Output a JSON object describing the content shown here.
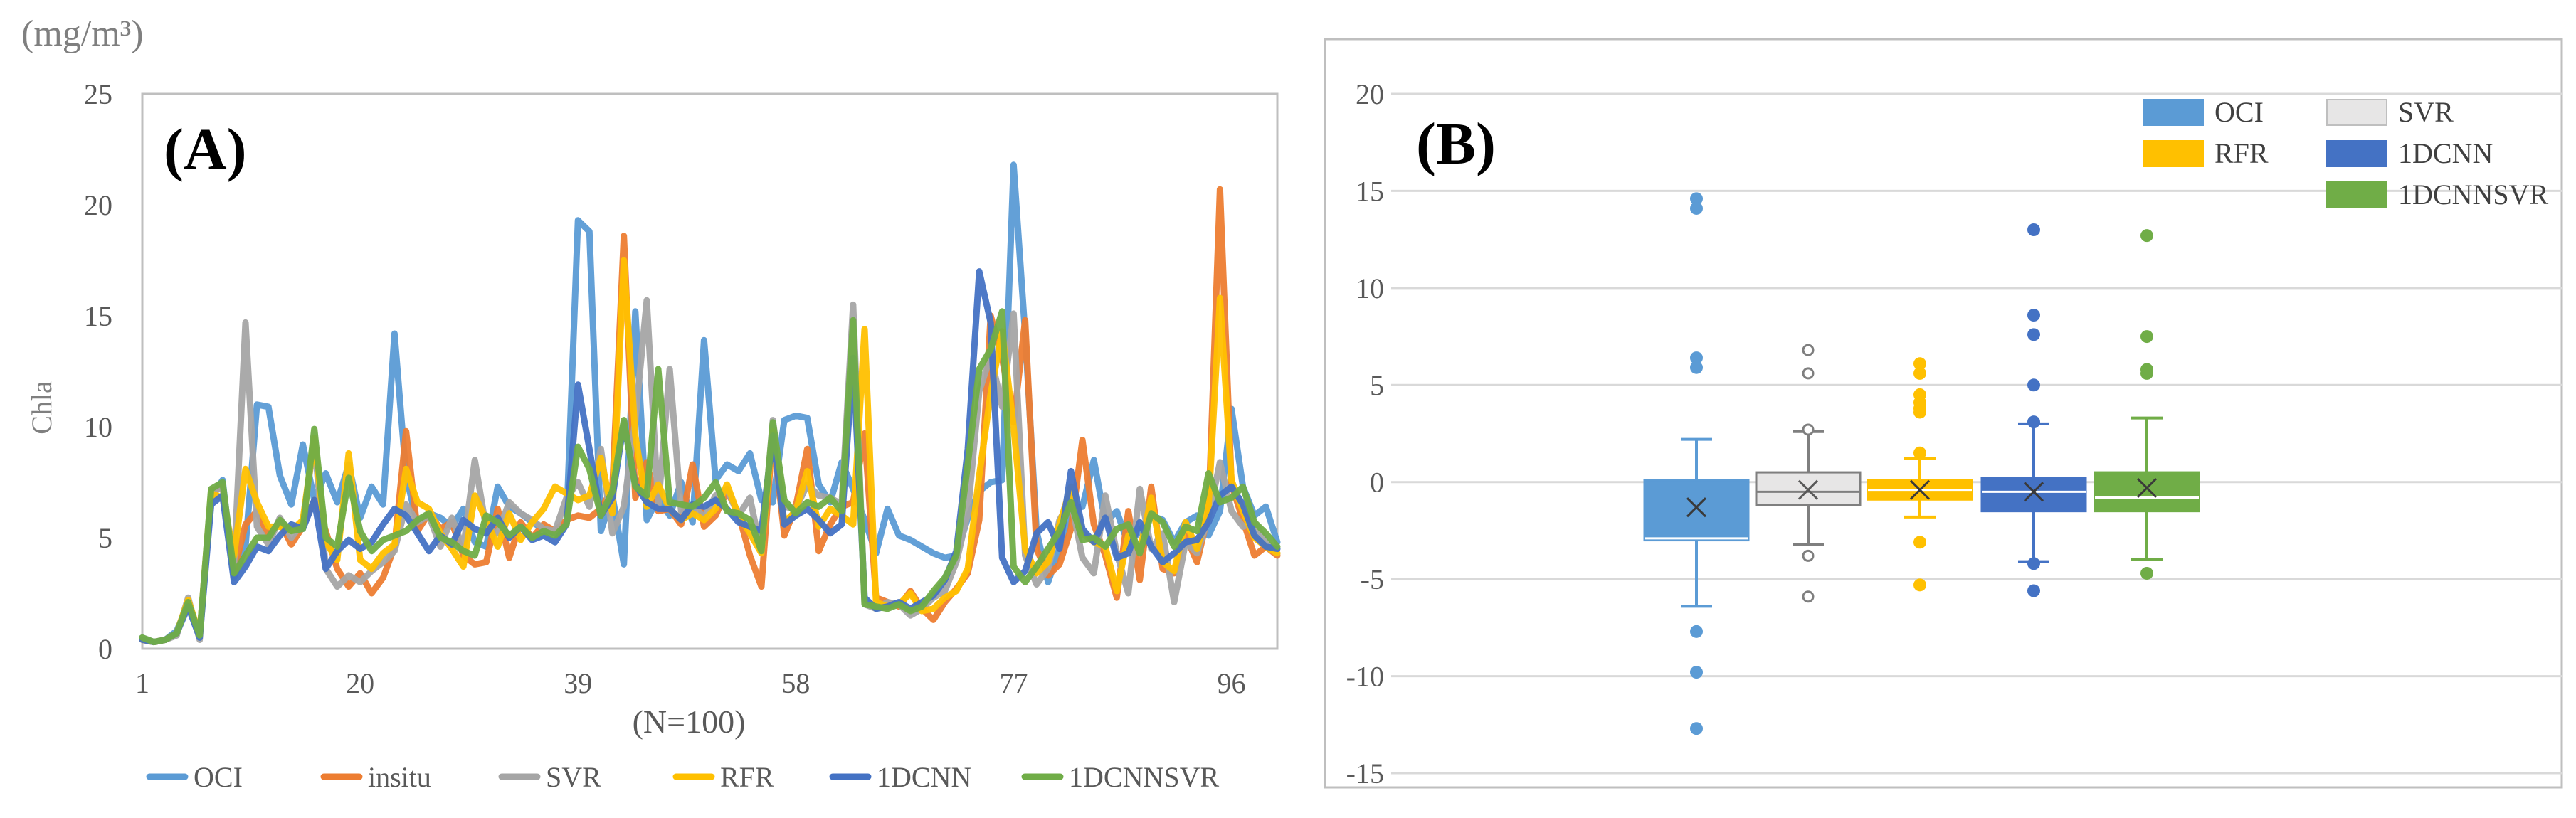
{
  "chart_data": [
    {
      "type": "line",
      "panel_label": "(A)",
      "unit_label": "(mg/m³)",
      "ylabel": "Chla",
      "xlabel": "(N=100)",
      "ylim": [
        0,
        25
      ],
      "y_ticks": [
        "0",
        "5",
        "10",
        "15",
        "20",
        "25"
      ],
      "x_ticks": [
        "1",
        "20",
        "39",
        "58",
        "77",
        "96"
      ],
      "xlim": [
        1,
        100
      ],
      "grid": false,
      "legend_position": "bottom",
      "x": [
        1,
        2,
        3,
        4,
        5,
        6,
        7,
        8,
        9,
        10,
        11,
        12,
        13,
        14,
        15,
        16,
        17,
        18,
        19,
        20,
        21,
        22,
        23,
        24,
        25,
        26,
        27,
        28,
        29,
        30,
        31,
        32,
        33,
        34,
        35,
        36,
        37,
        38,
        39,
        40,
        41,
        42,
        43,
        44,
        45,
        46,
        47,
        48,
        49,
        50,
        51,
        52,
        53,
        54,
        55,
        56,
        57,
        58,
        59,
        60,
        61,
        62,
        63,
        64,
        65,
        66,
        67,
        68,
        69,
        70,
        71,
        72,
        73,
        74,
        75,
        76,
        77,
        78,
        79,
        80,
        81,
        82,
        83,
        84,
        85,
        86,
        87,
        88,
        89,
        90,
        91,
        92,
        93,
        94,
        95,
        96,
        97,
        98,
        99,
        100
      ],
      "series": [
        {
          "name": "OCI",
          "color": "#5B9BD5",
          "values": [
            0.5,
            0.3,
            0.4,
            0.8,
            2.0,
            0.6,
            6.8,
            7.6,
            3.2,
            4.6,
            11.0,
            10.9,
            7.8,
            6.5,
            9.2,
            6.7,
            7.9,
            6.6,
            8.3,
            5.9,
            7.3,
            6.5,
            14.2,
            7.8,
            5.6,
            6.1,
            5.9,
            5.5,
            6.3,
            4.8,
            4.6,
            7.3,
            6.4,
            6.1,
            5.7,
            5.4,
            5.2,
            5.7,
            19.3,
            18.8,
            5.3,
            6.9,
            3.8,
            15.2,
            5.8,
            6.8,
            6.0,
            7.5,
            5.7,
            13.9,
            7.6,
            8.3,
            8.0,
            8.8,
            6.7,
            6.6,
            10.3,
            10.5,
            10.4,
            7.4,
            6.6,
            8.4,
            7.2,
            5.8,
            4.3,
            6.3,
            5.1,
            4.9,
            4.6,
            4.3,
            4.1,
            4.2,
            5.9,
            7.1,
            7.5,
            7.6,
            21.8,
            14.2,
            5.3,
            3.0,
            4.5,
            6.3,
            6.4,
            8.5,
            5.7,
            6.2,
            4.7,
            5.3,
            6.0,
            5.8,
            4.8,
            5.7,
            6.0,
            5.1,
            6.2,
            10.8,
            7.3,
            6.0,
            6.4,
            4.8
          ]
        },
        {
          "name": "insitu",
          "color": "#ED7D31",
          "values": [
            0.4,
            0.3,
            0.4,
            0.7,
            2.1,
            0.6,
            7.1,
            7.3,
            3.5,
            5.6,
            6.2,
            5.1,
            5.7,
            4.7,
            5.5,
            6.7,
            5.3,
            3.6,
            2.8,
            3.4,
            2.5,
            3.2,
            4.6,
            9.8,
            5.3,
            6.1,
            5.4,
            5.7,
            4.2,
            3.8,
            3.9,
            6.3,
            4.1,
            5.7,
            5.0,
            5.6,
            5.3,
            5.8,
            6.0,
            5.9,
            6.3,
            7.2,
            18.6,
            6.8,
            8.4,
            6.2,
            6.3,
            5.6,
            8.3,
            5.5,
            6.0,
            7.1,
            6.1,
            4.2,
            2.8,
            9.8,
            5.1,
            6.4,
            9.0,
            4.4,
            5.6,
            6.4,
            6.6,
            9.7,
            2.3,
            2.1,
            1.9,
            2.6,
            1.8,
            1.3,
            2.1,
            2.7,
            3.4,
            5.8,
            15.0,
            13.1,
            10.2,
            14.8,
            4.5,
            3.3,
            3.8,
            5.4,
            9.4,
            5.6,
            4.2,
            2.3,
            6.2,
            3.1,
            7.3,
            3.6,
            3.4,
            5.1,
            3.9,
            6.1,
            20.7,
            7.4,
            5.8,
            4.2,
            4.6,
            4.2
          ]
        },
        {
          "name": "SVR",
          "color": "#A5A5A5",
          "values": [
            0.5,
            0.3,
            0.4,
            0.6,
            2.3,
            0.4,
            7.0,
            7.3,
            3.8,
            14.7,
            5.5,
            4.7,
            5.9,
            5.0,
            5.7,
            9.4,
            3.6,
            2.8,
            3.3,
            3.0,
            3.5,
            3.9,
            4.4,
            6.5,
            5.7,
            6.0,
            4.6,
            5.9,
            4.5,
            8.5,
            5.4,
            5.2,
            6.6,
            6.1,
            5.8,
            5.4,
            5.3,
            6.8,
            7.5,
            6.4,
            9.0,
            5.2,
            6.4,
            10.3,
            15.7,
            6.4,
            12.6,
            6.2,
            6.5,
            5.9,
            6.9,
            7.2,
            6.0,
            6.8,
            4.3,
            10.3,
            6.4,
            6.3,
            7.4,
            6.9,
            6.8,
            6.5,
            15.5,
            2.0,
            1.8,
            2.1,
            2.0,
            1.5,
            1.8,
            2.3,
            2.6,
            3.9,
            6.1,
            11.6,
            13.2,
            10.9,
            15.1,
            4.2,
            2.9,
            3.6,
            5.8,
            6.7,
            4.1,
            3.4,
            6.9,
            4.3,
            2.5,
            7.2,
            4.5,
            5.2,
            2.1,
            4.8,
            4.3,
            5.9,
            8.4,
            6.2,
            5.5,
            5.7,
            4.8,
            4.3
          ]
        },
        {
          "name": "RFR",
          "color": "#FFC000",
          "values": [
            0.4,
            0.3,
            0.4,
            0.7,
            2.2,
            0.6,
            7.0,
            6.8,
            4.2,
            8.1,
            6.6,
            5.5,
            5.5,
            5.3,
            5.8,
            9.5,
            4.8,
            4.0,
            8.8,
            4.0,
            3.6,
            4.3,
            4.7,
            8.1,
            6.6,
            6.3,
            5.2,
            4.5,
            3.7,
            6.9,
            5.8,
            4.6,
            6.1,
            4.9,
            5.7,
            6.3,
            7.3,
            7.0,
            6.7,
            6.9,
            8.6,
            6.1,
            17.5,
            9.6,
            6.4,
            7.4,
            6.3,
            5.8,
            6.1,
            5.8,
            6.3,
            7.4,
            6.0,
            5.2,
            4.3,
            9.8,
            5.7,
            6.2,
            8.0,
            5.5,
            6.3,
            6.0,
            5.6,
            14.4,
            2.1,
            1.9,
            2.0,
            2.5,
            1.7,
            1.8,
            2.3,
            2.6,
            3.6,
            7.8,
            11.5,
            14.3,
            10.0,
            4.5,
            3.4,
            3.9,
            5.6,
            7.3,
            5.2,
            4.8,
            4.6,
            2.6,
            5.1,
            4.4,
            6.8,
            3.9,
            3.5,
            5.7,
            4.5,
            6.4,
            15.8,
            7.6,
            6.2,
            5.0,
            4.6,
            4.3
          ]
        },
        {
          "name": "1DCNN",
          "color": "#4472C4",
          "values": [
            0.4,
            0.3,
            0.4,
            0.7,
            1.9,
            0.5,
            6.5,
            6.9,
            3.0,
            3.7,
            4.6,
            4.4,
            5.1,
            5.6,
            5.4,
            6.7,
            3.6,
            4.4,
            4.9,
            4.5,
            4.8,
            5.6,
            6.3,
            6.0,
            5.2,
            4.4,
            5.1,
            4.7,
            5.8,
            5.4,
            5.2,
            5.9,
            5.0,
            5.5,
            4.9,
            5.1,
            4.8,
            5.6,
            11.9,
            9.0,
            6.0,
            6.8,
            10.2,
            7.4,
            6.6,
            6.3,
            6.3,
            5.8,
            6.5,
            6.4,
            6.7,
            6.3,
            5.7,
            5.5,
            5.3,
            9.6,
            5.6,
            6.0,
            6.3,
            5.8,
            5.2,
            5.6,
            13.1,
            2.3,
            1.8,
            1.9,
            2.1,
            1.8,
            2.1,
            2.4,
            3.1,
            4.4,
            9.0,
            17.0,
            14.7,
            4.1,
            3.0,
            3.5,
            5.2,
            5.7,
            4.5,
            8.0,
            5.4,
            4.8,
            5.9,
            4.1,
            4.3,
            5.7,
            4.6,
            3.9,
            4.3,
            4.8,
            4.9,
            5.7,
            6.9,
            7.3,
            6.5,
            5.1,
            4.6,
            4.5
          ]
        },
        {
          "name": "1DCNNSVR",
          "color": "#70AD47",
          "values": [
            0.5,
            0.3,
            0.4,
            0.7,
            2.1,
            0.6,
            7.2,
            7.5,
            3.4,
            4.2,
            5.0,
            5.0,
            5.8,
            5.3,
            5.4,
            9.9,
            5.0,
            4.6,
            7.7,
            5.3,
            4.4,
            4.9,
            5.1,
            5.3,
            5.8,
            6.1,
            5.0,
            4.8,
            4.4,
            4.2,
            6.0,
            5.7,
            5.1,
            5.5,
            5.0,
            5.3,
            5.1,
            5.6,
            9.1,
            8.1,
            6.0,
            7.1,
            10.3,
            7.3,
            6.9,
            12.6,
            6.6,
            6.5,
            6.4,
            6.8,
            7.5,
            6.2,
            6.1,
            5.8,
            4.4,
            10.2,
            6.7,
            6.1,
            6.6,
            6.4,
            6.8,
            6.2,
            14.8,
            2.0,
            1.9,
            1.8,
            2.0,
            1.7,
            1.9,
            2.6,
            3.2,
            4.2,
            8.3,
            12.6,
            13.5,
            15.2,
            3.7,
            3.0,
            3.7,
            4.5,
            5.3,
            6.6,
            4.9,
            5.0,
            4.6,
            5.4,
            5.6,
            4.3,
            6.1,
            5.7,
            4.6,
            5.5,
            5.3,
            7.9,
            6.6,
            6.8,
            7.3,
            5.7,
            5.2,
            4.6
          ]
        }
      ]
    },
    {
      "type": "box",
      "panel_label": "(B)",
      "ylim": [
        -15,
        20
      ],
      "y_ticks": [
        "-15",
        "-10",
        "-5",
        "0",
        "5",
        "10",
        "15",
        "20"
      ],
      "grid": true,
      "legend_position": "top-right",
      "series": [
        {
          "name": "OCI",
          "color": "#5B9BD5",
          "q1": -3.0,
          "median": -2.9,
          "q3": 0.1,
          "mean": -1.3,
          "whisker_low": -6.4,
          "whisker_high": 2.2,
          "outliers": [
            14.6,
            14.1,
            6.4,
            5.9,
            -7.7,
            -9.8,
            -12.7
          ]
        },
        {
          "name": "SVR",
          "color": "#E7E6E6",
          "q1": -1.2,
          "median": -0.5,
          "q3": 0.5,
          "mean": -0.4,
          "whisker_low": -3.2,
          "whisker_high": 2.6,
          "outliers": [
            6.8,
            5.6,
            2.7,
            -3.8,
            -5.9
          ]
        },
        {
          "name": "RFR",
          "color": "#FFC000",
          "q1": -0.9,
          "median": -0.4,
          "q3": 0.1,
          "mean": -0.4,
          "whisker_low": -1.8,
          "whisker_high": 1.2,
          "outliers": [
            6.1,
            5.6,
            4.5,
            4.1,
            3.8,
            3.6,
            1.5,
            -3.1,
            -5.3
          ]
        },
        {
          "name": "1DCNN",
          "color": "#4472C4",
          "q1": -1.5,
          "median": -0.5,
          "q3": 0.2,
          "mean": -0.5,
          "whisker_low": -4.1,
          "whisker_high": 3.0,
          "outliers": [
            13.0,
            8.6,
            7.6,
            5.0,
            3.1,
            -4.2,
            -5.6
          ]
        },
        {
          "name": "1DCNNSVR",
          "color": "#70AD47",
          "q1": -1.5,
          "median": -0.8,
          "q3": 0.5,
          "mean": -0.3,
          "whisker_low": -4.0,
          "whisker_high": 3.3,
          "outliers": [
            12.7,
            7.5,
            5.8,
            5.6,
            -4.7
          ]
        }
      ]
    }
  ]
}
